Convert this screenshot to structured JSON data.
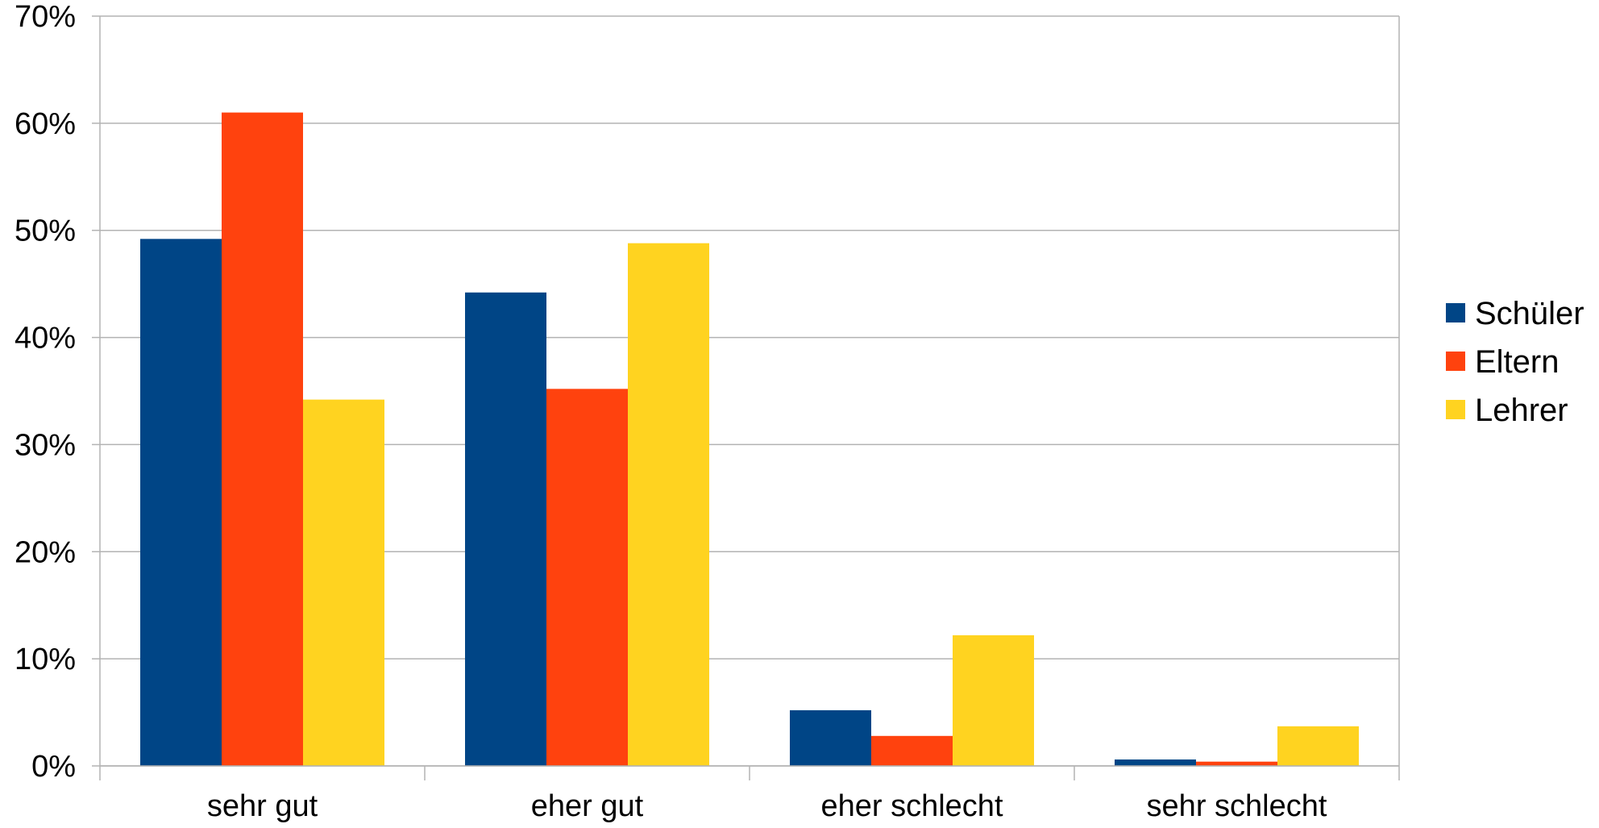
{
  "chart_data": {
    "type": "bar",
    "title": "",
    "xlabel": "",
    "ylabel": "",
    "ylim": [
      0,
      70
    ],
    "y_ticks": [
      0,
      10,
      20,
      30,
      40,
      50,
      60,
      70
    ],
    "y_tick_format": "{v}%",
    "grid": true,
    "legend_position": "right",
    "categories": [
      "sehr gut",
      "eher gut",
      "eher schlecht",
      "sehr schlecht"
    ],
    "series": [
      {
        "name": "Schüler",
        "color": "#004586",
        "values": [
          49.2,
          44.2,
          5.2,
          0.6
        ]
      },
      {
        "name": "Eltern",
        "color": "#ff420e",
        "values": [
          61.0,
          35.2,
          2.8,
          0.4
        ]
      },
      {
        "name": "Lehrer",
        "color": "#ffd320",
        "values": [
          34.2,
          48.8,
          12.2,
          3.7
        ]
      }
    ]
  }
}
